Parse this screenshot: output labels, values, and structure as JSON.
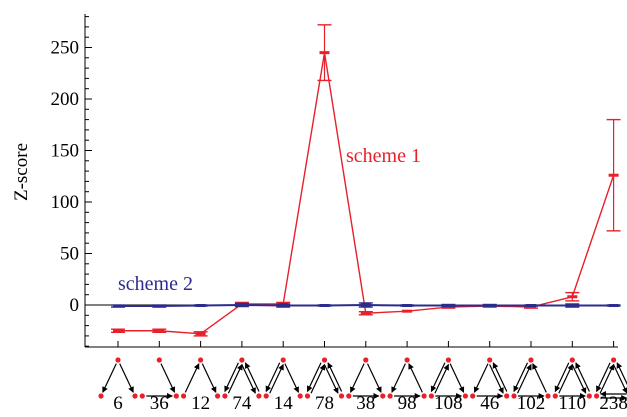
{
  "chart_data": {
    "type": "line",
    "title": "",
    "xlabel": "",
    "ylabel": "Z-score",
    "ylim": [
      -42,
      290
    ],
    "y_ticks": [
      0,
      50,
      100,
      150,
      200,
      250
    ],
    "y_tick_labels": [
      "0",
      "50",
      "100",
      "150",
      "200",
      "250"
    ],
    "grid": false,
    "zero_line": true,
    "categories": [
      "6",
      "36",
      "12",
      "74",
      "14",
      "78",
      "38",
      "98",
      "108",
      "46",
      "102",
      "110",
      "238"
    ],
    "category_icons": "three-node directed subgraph (motif) drawings, one per category",
    "series": [
      {
        "name": "scheme 1",
        "color": "#e8202a",
        "values": [
          -25,
          -25,
          -28,
          1,
          1,
          245,
          -8,
          -6,
          -2,
          -1,
          -2,
          8,
          126
        ],
        "errors": [
          1.5,
          1.5,
          2,
          1.5,
          1.5,
          27,
          1.5,
          0,
          1,
          1,
          1,
          4,
          54
        ]
      },
      {
        "name": "scheme 2",
        "color": "#2b2c8c",
        "values": [
          -1,
          -1,
          -0.5,
          0,
          -0.5,
          -0.5,
          0,
          -0.5,
          -0.5,
          -0.5,
          -0.5,
          -0.5,
          -0.5
        ],
        "errors": [
          1,
          1,
          0.5,
          1.5,
          1.5,
          0.5,
          2,
          0.5,
          1,
          1,
          0.5,
          1.5,
          0.5
        ]
      }
    ]
  }
}
